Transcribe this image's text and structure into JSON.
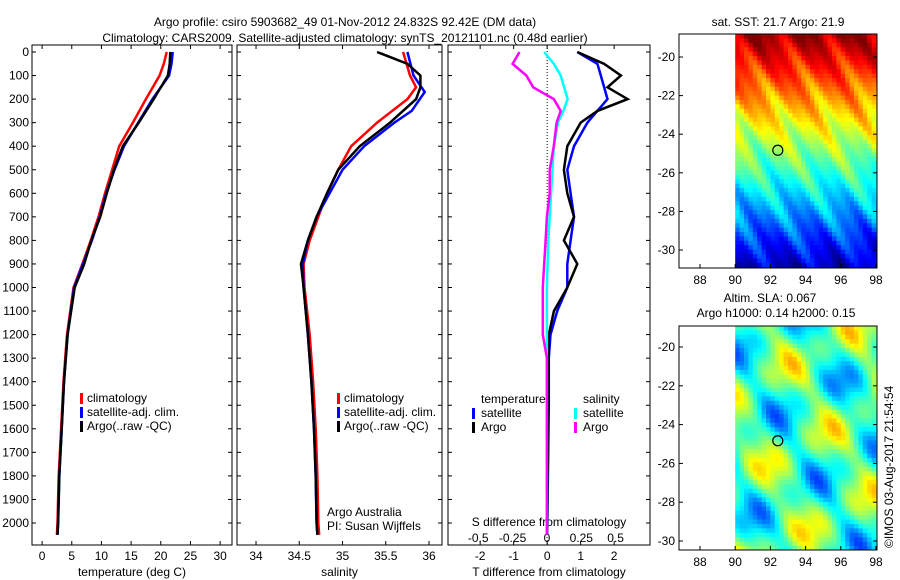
{
  "title_line1": "Argo profile: csiro 5903682_49 01-Nov-2012 24.832S 92.42E (DM data)",
  "title_line2": "Climatology: CARS2009. Satellite-adjusted climatology: synTS_20121101.nc (0.48d earlier)",
  "footer": "©IMOS 03-Aug-2017 21:54:54",
  "colors": {
    "climatology": "#ff0000",
    "satellite": "#0000ff",
    "argo": "#000000",
    "sal_satellite": "#00ffff",
    "sal_argo": "#ff00ff"
  },
  "chart_data": [
    {
      "type": "line",
      "xlabel": "temperature (deg C)",
      "xlim": [
        -1.7,
        32
      ],
      "ylim": [
        2050,
        0
      ],
      "xticks": [
        "0",
        "5",
        "10",
        "15",
        "20",
        "25",
        "30"
      ],
      "xtick_vals": [
        0,
        5,
        10,
        15,
        20,
        25,
        30
      ],
      "depth_ticks": [
        "0",
        "100",
        "200",
        "300",
        "400",
        "500",
        "600",
        "700",
        "800",
        "900",
        "1000",
        "1100",
        "1200",
        "1300",
        "1400",
        "1500",
        "1600",
        "1700",
        "1800",
        "1900",
        "2000"
      ],
      "legend": [
        "climatology",
        "satellite-adj. clim.",
        "Argo(..raw -QC)"
      ],
      "series": [
        {
          "name": "climatology",
          "depth": [
            0,
            50,
            100,
            200,
            300,
            400,
            500,
            600,
            700,
            800,
            900,
            1000,
            1200,
            1400,
            1600,
            1800,
            2000,
            2050
          ],
          "values": [
            21,
            20.5,
            19.8,
            17.5,
            15.3,
            13,
            11.8,
            10.6,
            9.5,
            8.2,
            6.8,
            5.3,
            4.2,
            3.6,
            3.2,
            2.8,
            2.6,
            2.5
          ]
        },
        {
          "name": "satellite-adj. clim.",
          "depth": [
            0,
            50,
            100,
            200,
            300,
            400,
            500,
            600,
            700,
            800,
            900,
            1000,
            1200,
            1400,
            1600,
            1800,
            2000,
            2050
          ],
          "values": [
            22,
            21.8,
            21.4,
            18.6,
            16.2,
            13.8,
            12.2,
            10.8,
            9.7,
            8.4,
            6.9,
            5.4,
            4.3,
            3.7,
            3.3,
            2.9,
            2.7,
            2.6
          ]
        },
        {
          "name": "Argo(..raw -QC)",
          "depth": [
            0,
            50,
            100,
            200,
            300,
            400,
            500,
            600,
            700,
            800,
            900,
            1000,
            1200,
            1400,
            1600,
            1800,
            2000,
            2050
          ],
          "values": [
            21.6,
            21.5,
            21.2,
            18.8,
            16.3,
            13.6,
            12.1,
            10.9,
            9.8,
            8.3,
            7.1,
            5.5,
            4.3,
            3.7,
            3.3,
            2.9,
            2.7,
            2.6
          ]
        }
      ]
    },
    {
      "type": "line",
      "xlabel": "salinity",
      "xlim": [
        33.78,
        36.15
      ],
      "ylim": [
        2050,
        0
      ],
      "xticks": [
        "34",
        "34.5",
        "35",
        "35.5",
        "36"
      ],
      "xtick_vals": [
        34,
        34.5,
        35,
        35.5,
        36
      ],
      "legend": [
        "climatology",
        "satellite-adj. clim.",
        "Argo(..raw -QC)"
      ],
      "annotations": [
        "Argo Australia",
        "PI: Susan Wijffels"
      ],
      "series": [
        {
          "name": "climatology",
          "depth": [
            0,
            100,
            150,
            200,
            300,
            400,
            500,
            600,
            700,
            800,
            900,
            1000,
            1200,
            1400,
            1600,
            1800,
            2000,
            2050
          ],
          "values": [
            35.7,
            35.78,
            35.85,
            35.75,
            35.4,
            35.1,
            34.95,
            34.82,
            34.72,
            34.62,
            34.55,
            34.56,
            34.62,
            34.66,
            34.69,
            34.71,
            34.72,
            34.73
          ]
        },
        {
          "name": "satellite-adj. clim.",
          "depth": [
            0,
            100,
            170,
            250,
            300,
            400,
            500,
            600,
            700,
            800,
            900,
            1000,
            1200,
            1400,
            1600,
            1800,
            2000,
            2050
          ],
          "values": [
            35.75,
            35.82,
            35.95,
            35.8,
            35.6,
            35.25,
            35.0,
            34.85,
            34.7,
            34.6,
            34.54,
            34.55,
            34.6,
            34.64,
            34.67,
            34.69,
            34.7,
            34.71
          ]
        },
        {
          "name": "Argo(..raw -QC)",
          "depth": [
            0,
            50,
            100,
            150,
            200,
            300,
            400,
            500,
            600,
            700,
            800,
            900,
            1000,
            1200,
            1400,
            1600,
            1800,
            2000,
            2050
          ],
          "values": [
            35.4,
            35.75,
            35.9,
            35.9,
            35.85,
            35.55,
            35.2,
            34.95,
            34.82,
            34.7,
            34.6,
            34.52,
            34.55,
            34.6,
            34.64,
            34.67,
            34.69,
            34.7,
            34.71
          ]
        }
      ]
    },
    {
      "type": "line",
      "xlabel": "T difference from climatology",
      "xlabel2": "S difference from climatology",
      "xlim": [
        -2.96,
        3.07
      ],
      "slim": [
        -0.72,
        0.75
      ],
      "xticks": [
        "-2",
        "-1",
        "0",
        "1",
        "2"
      ],
      "xtick_vals": [
        -2,
        -1,
        0,
        1,
        2
      ],
      "sticks": [
        "-0.5",
        "-0.25",
        "0",
        "0.25",
        "0.5"
      ],
      "stick_vals": [
        -0.5,
        -0.25,
        0,
        0.25,
        0.5
      ],
      "legend_headers": [
        "temperature",
        "salinity"
      ],
      "legend": [
        "satellite",
        "Argo",
        "satellite",
        "Argo"
      ],
      "series": [
        {
          "name": "T satellite",
          "axis": "T",
          "depth": [
            0,
            50,
            100,
            200,
            250,
            300,
            400,
            500,
            600,
            700,
            800,
            900,
            1000,
            1100,
            1200,
            1300,
            1500,
            2050
          ],
          "values": [
            0.9,
            1.5,
            1.6,
            1.8,
            1.5,
            1.2,
            0.8,
            0.6,
            0.7,
            0.8,
            0.7,
            0.6,
            0.6,
            0.3,
            0.1,
            0.05,
            0.05,
            0
          ]
        },
        {
          "name": "T Argo",
          "axis": "T",
          "depth": [
            0,
            50,
            100,
            150,
            200,
            250,
            300,
            400,
            500,
            600,
            700,
            800,
            900,
            1000,
            1100,
            1200,
            2050
          ],
          "values": [
            0.9,
            1.7,
            2.2,
            1.8,
            2.4,
            1.5,
            1.0,
            0.6,
            0.5,
            0.6,
            0.8,
            0.5,
            0.9,
            0.6,
            0.2,
            0.05,
            0
          ]
        },
        {
          "name": "S satellite",
          "axis": "S",
          "depth": [
            0,
            50,
            100,
            200,
            250,
            300,
            400,
            500,
            600,
            700,
            800,
            1000,
            2050
          ],
          "values": [
            -0.02,
            0.05,
            0.1,
            0.15,
            0.12,
            0.08,
            0.05,
            0.04,
            0.03,
            0.02,
            0.01,
            0,
            0
          ]
        },
        {
          "name": "S Argo",
          "axis": "S",
          "depth": [
            0,
            50,
            100,
            150,
            200,
            250,
            300,
            400,
            500,
            600,
            700,
            800,
            900,
            1000,
            1200,
            1300,
            2050
          ],
          "values": [
            -0.2,
            -0.25,
            -0.15,
            -0.1,
            0.05,
            0.1,
            0.07,
            0.05,
            0.02,
            0.02,
            0,
            -0.01,
            -0.02,
            -0.03,
            -0.03,
            0,
            0
          ]
        }
      ]
    }
  ],
  "maps": [
    {
      "title": "sat. SST: 21.7 Argo: 21.9",
      "xticks": [
        "88",
        "90",
        "92",
        "94",
        "96",
        "98"
      ],
      "yticks": [
        "-20",
        "-22",
        "-24",
        "-26",
        "-28",
        "-30"
      ],
      "argo_lon": 92.42,
      "argo_lat": -24.832
    },
    {
      "title1": "Altim. SLA: 0.067",
      "title2": "Argo h1000: 0.14 h2000: 0.15",
      "xticks": [
        "88",
        "90",
        "92",
        "94",
        "96",
        "98"
      ],
      "yticks": [
        "-20",
        "-22",
        "-24",
        "-26",
        "-28",
        "-30"
      ],
      "argo_lon": 92.42,
      "argo_lat": -24.832
    }
  ]
}
